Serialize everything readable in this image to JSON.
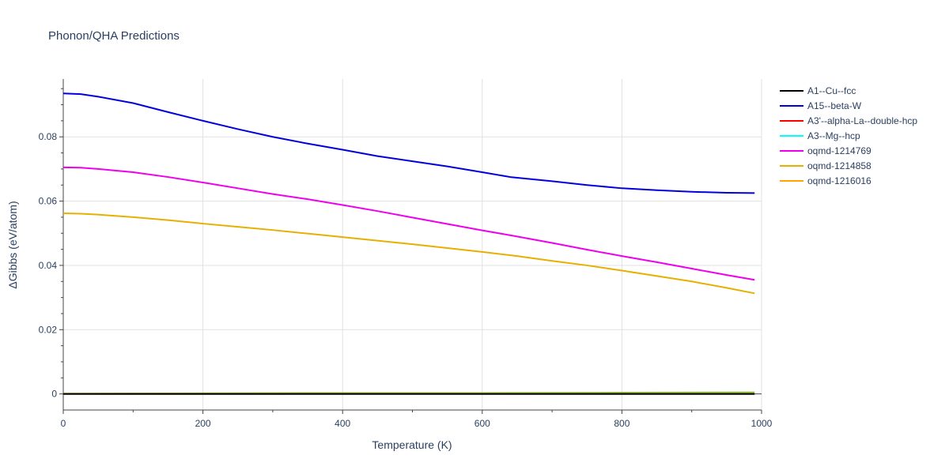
{
  "chart_data": {
    "type": "line",
    "title": "Phonon/QHA Predictions",
    "xlabel": "Temperature (K)",
    "ylabel": "ΔGibbs (eV/atom)",
    "xlim": [
      0,
      1000
    ],
    "ylim": [
      -0.005,
      0.098
    ],
    "x_ticks": [
      0,
      200,
      400,
      600,
      800,
      1000
    ],
    "x_tick_labels": [
      "0",
      "200",
      "400",
      "600",
      "800",
      "1000"
    ],
    "y_ticks": [
      0,
      0.02,
      0.04,
      0.06,
      0.08
    ],
    "y_tick_labels": [
      "0",
      "0.02",
      "0.04",
      "0.06",
      "0.08"
    ],
    "grid": true,
    "legend_position": "right",
    "series": [
      {
        "name": "A1--Cu--fcc",
        "color": "#000000",
        "x": [
          0,
          990
        ],
        "y": [
          0,
          0
        ]
      },
      {
        "name": "A15--beta-W",
        "color": "#0000dd",
        "x": [
          0,
          25,
          50,
          100,
          150,
          200,
          250,
          300,
          350,
          400,
          450,
          500,
          550,
          600,
          640,
          700,
          750,
          800,
          850,
          900,
          950,
          990
        ],
        "y": [
          0.0935,
          0.0933,
          0.0925,
          0.0905,
          0.0877,
          0.085,
          0.0824,
          0.08,
          0.0779,
          0.076,
          0.074,
          0.0724,
          0.0708,
          0.069,
          0.0675,
          0.0662,
          0.065,
          0.064,
          0.0634,
          0.0629,
          0.0626,
          0.0625
        ]
      },
      {
        "name": "A3'--alpha-La--double-hcp",
        "color": "#ff0000",
        "x": [
          0,
          990
        ],
        "y": [
          0,
          0
        ]
      },
      {
        "name": "A3--Mg--hcp",
        "color": "#00ffff",
        "x": [
          0,
          990
        ],
        "y": [
          0,
          0
        ]
      },
      {
        "name": "oqmd-1214769",
        "color": "#ee00ee",
        "x": [
          0,
          25,
          50,
          100,
          150,
          200,
          250,
          300,
          350,
          400,
          450,
          500,
          550,
          600,
          650,
          700,
          750,
          800,
          850,
          900,
          950,
          990
        ],
        "y": [
          0.0705,
          0.0704,
          0.07,
          0.069,
          0.0675,
          0.0658,
          0.064,
          0.0622,
          0.0606,
          0.0588,
          0.0569,
          0.0549,
          0.0529,
          0.0509,
          0.049,
          0.047,
          0.0449,
          0.0429,
          0.041,
          0.039,
          0.037,
          0.0355
        ]
      },
      {
        "name": "oqmd-1214858",
        "color": "#e6b000",
        "x": [
          0,
          25,
          50,
          100,
          150,
          200,
          250,
          300,
          350,
          400,
          450,
          500,
          550,
          600,
          650,
          700,
          750,
          800,
          850,
          900,
          950,
          990
        ],
        "y": [
          0.0562,
          0.0561,
          0.0558,
          0.055,
          0.0541,
          0.053,
          0.052,
          0.051,
          0.0499,
          0.0488,
          0.0477,
          0.0466,
          0.0454,
          0.0442,
          0.0429,
          0.0414,
          0.04,
          0.0384,
          0.0367,
          0.035,
          0.033,
          0.0313
        ]
      },
      {
        "name": "oqmd-1216016",
        "color": "#ffa500",
        "x": [
          0,
          990
        ],
        "y": [
          0,
          0
        ]
      },
      {
        "name": "",
        "color": "#8cc63f",
        "x": [
          0,
          200,
          400,
          600,
          800,
          990
        ],
        "y": [
          0.0001,
          0.0002,
          0.0003,
          0.0003,
          0.0004,
          0.0005
        ]
      }
    ]
  }
}
